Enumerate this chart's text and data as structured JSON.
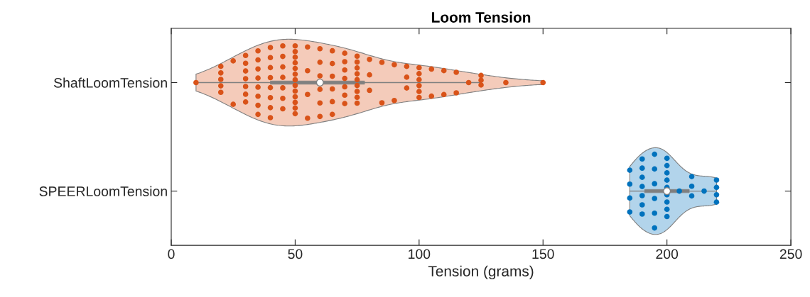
{
  "chart_data": {
    "type": "box",
    "title": "Loom Tension",
    "xlabel": "Tension (grams)",
    "orientation": "horizontal",
    "categories": [
      "ShaftLoomTension",
      "SPEERLoomTension"
    ],
    "xlim": [
      0,
      250
    ],
    "xticks": [
      0,
      50,
      100,
      150,
      200,
      250
    ],
    "grid": false,
    "boxes": [
      {
        "low": 10,
        "q1": 40,
        "median": 60,
        "q3": 78,
        "high": 125
      },
      {
        "low": 185,
        "q1": 191,
        "median": 200,
        "q3": 209,
        "high": 220
      }
    ],
    "series": [
      {
        "type": "scatter",
        "color": "#d95319",
        "marker": "circle",
        "x": [
          "ShaftLoomTension",
          "ShaftLoomTension",
          "ShaftLoomTension",
          "ShaftLoomTension",
          "ShaftLoomTension",
          "ShaftLoomTension",
          "ShaftLoomTension",
          "ShaftLoomTension",
          "ShaftLoomTension",
          "ShaftLoomTension",
          "ShaftLoomTension",
          "ShaftLoomTension",
          "ShaftLoomTension",
          "ShaftLoomTension",
          "ShaftLoomTension",
          "ShaftLoomTension",
          "ShaftLoomTension",
          "ShaftLoomTension",
          "ShaftLoomTension",
          "ShaftLoomTension",
          "ShaftLoomTension",
          "ShaftLoomTension",
          "ShaftLoomTension",
          "ShaftLoomTension",
          "ShaftLoomTension",
          "ShaftLoomTension",
          "ShaftLoomTension",
          "ShaftLoomTension",
          "ShaftLoomTension",
          "ShaftLoomTension",
          "ShaftLoomTension",
          "ShaftLoomTension",
          "ShaftLoomTension",
          "ShaftLoomTension",
          "ShaftLoomTension",
          "ShaftLoomTension",
          "ShaftLoomTension",
          "ShaftLoomTension",
          "ShaftLoomTension",
          "ShaftLoomTension",
          "ShaftLoomTension",
          "ShaftLoomTension",
          "ShaftLoomTension",
          "ShaftLoomTension",
          "ShaftLoomTension",
          "ShaftLoomTension",
          "ShaftLoomTension",
          "ShaftLoomTension",
          "ShaftLoomTension",
          "ShaftLoomTension",
          "ShaftLoomTension",
          "ShaftLoomTension",
          "ShaftLoomTension",
          "ShaftLoomTension",
          "ShaftLoomTension",
          "ShaftLoomTension",
          "ShaftLoomTension",
          "ShaftLoomTension",
          "ShaftLoomTension",
          "ShaftLoomTension",
          "ShaftLoomTension",
          "ShaftLoomTension",
          "ShaftLoomTension",
          "ShaftLoomTension",
          "ShaftLoomTension",
          "ShaftLoomTension",
          "ShaftLoomTension",
          "ShaftLoomTension",
          "ShaftLoomTension",
          "ShaftLoomTension",
          "ShaftLoomTension",
          "ShaftLoomTension",
          "ShaftLoomTension",
          "ShaftLoomTension",
          "ShaftLoomTension",
          "ShaftLoomTension",
          "ShaftLoomTension",
          "ShaftLoomTension",
          "ShaftLoomTension",
          "ShaftLoomTension",
          "ShaftLoomTension",
          "ShaftLoomTension",
          "ShaftLoomTension",
          "ShaftLoomTension",
          "ShaftLoomTension",
          "ShaftLoomTension",
          "ShaftLoomTension",
          "ShaftLoomTension",
          "ShaftLoomTension",
          "ShaftLoomTension",
          "ShaftLoomTension",
          "ShaftLoomTension",
          "ShaftLoomTension",
          "ShaftLoomTension",
          "ShaftLoomTension",
          "ShaftLoomTension",
          "ShaftLoomTension",
          "ShaftLoomTension",
          "ShaftLoomTension",
          "ShaftLoomTension",
          "ShaftLoomTension",
          "ShaftLoomTension",
          "ShaftLoomTension",
          "ShaftLoomTension",
          "ShaftLoomTension",
          "ShaftLoomTension",
          "ShaftLoomTension",
          "ShaftLoomTension",
          "ShaftLoomTension",
          "ShaftLoomTension",
          "ShaftLoomTension"
        ],
        "values": [
          10,
          20,
          20,
          20,
          20,
          20,
          25,
          25,
          30,
          30,
          30,
          30,
          30,
          30,
          30,
          35,
          35,
          35,
          35,
          35,
          35,
          35,
          35,
          40,
          40,
          40,
          40,
          40,
          40,
          40,
          40,
          45,
          45,
          45,
          45,
          45,
          45,
          45,
          50,
          50,
          50,
          50,
          50,
          50,
          50,
          50,
          50,
          50,
          50,
          50,
          50,
          55,
          55,
          55,
          55,
          60,
          60,
          60,
          60,
          60,
          60,
          65,
          65,
          65,
          65,
          65,
          65,
          70,
          70,
          70,
          70,
          70,
          70,
          70,
          75,
          75,
          75,
          75,
          75,
          75,
          75,
          75,
          75,
          80,
          80,
          80,
          85,
          85,
          90,
          90,
          95,
          95,
          95,
          100,
          100,
          100,
          100,
          100,
          100,
          105,
          105,
          110,
          110,
          115,
          115,
          120,
          125,
          125,
          125,
          135,
          150
        ]
      },
      {
        "type": "scatter",
        "color": "#0072bd",
        "marker": "circle",
        "x": [
          "SPEERLoomTension",
          "SPEERLoomTension",
          "SPEERLoomTension",
          "SPEERLoomTension",
          "SPEERLoomTension",
          "SPEERLoomTension",
          "SPEERLoomTension",
          "SPEERLoomTension",
          "SPEERLoomTension",
          "SPEERLoomTension",
          "SPEERLoomTension",
          "SPEERLoomTension",
          "SPEERLoomTension",
          "SPEERLoomTension",
          "SPEERLoomTension",
          "SPEERLoomTension",
          "SPEERLoomTension",
          "SPEERLoomTension",
          "SPEERLoomTension",
          "SPEERLoomTension",
          "SPEERLoomTension",
          "SPEERLoomTension",
          "SPEERLoomTension",
          "SPEERLoomTension",
          "SPEERLoomTension",
          "SPEERLoomTension",
          "SPEERLoomTension",
          "SPEERLoomTension",
          "SPEERLoomTension",
          "SPEERLoomTension",
          "SPEERLoomTension",
          "SPEERLoomTension",
          "SPEERLoomTension",
          "SPEERLoomTension",
          "SPEERLoomTension"
        ],
        "values": [
          185,
          185,
          185,
          185,
          190,
          190,
          190,
          190,
          190,
          190,
          190,
          195,
          195,
          195,
          195,
          195,
          195,
          200,
          200,
          200,
          200,
          200,
          200,
          200,
          200,
          200,
          205,
          210,
          210,
          210,
          215,
          220,
          220,
          220,
          220
        ]
      }
    ]
  }
}
